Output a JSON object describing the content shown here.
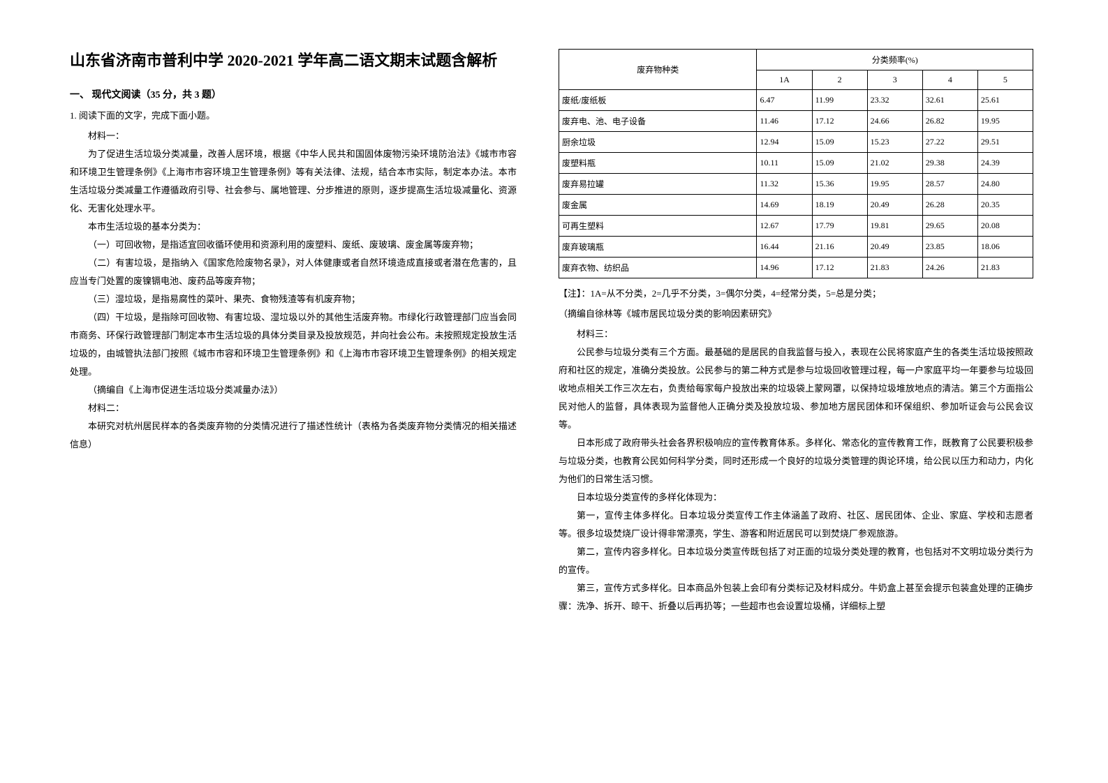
{
  "title": "山东省济南市普利中学 2020-2021 学年高二语文期末试题含解析",
  "section1": {
    "heading": "一、 现代文阅读（35 分，共 3 题）",
    "q1_intro": "1. 阅读下面的文字，完成下面小题。",
    "mat1_label": "材料一：",
    "mat1_p1": "为了促进生活垃圾分类减量，改善人居环境，根据《中华人民共和国固体废物污染环境防治法》《城市市容和环境卫生管理条例》《上海市市容环境卫生管理条例》等有关法律、法规，结合本市实际，制定本办法。本市生活垃圾分类减量工作遵循政府引导、社会参与、属地管理、分步推进的原则，逐步提高生活垃圾减量化、资源化、无害化处理水平。",
    "mat1_p2": "本市生活垃圾的基本分类为：",
    "mat1_p3": "（一）可回收物，是指适宜回收循环使用和资源利用的废塑料、废纸、废玻璃、废金属等废弃物；",
    "mat1_p4": "（二）有害垃圾，是指纳入《国家危险废物名录》，对人体健康或者自然环境造成直接或者潜在危害的，且应当专门处置的废镍镉电池、废药品等废弃物；",
    "mat1_p5": "（三）湿垃圾，是指易腐性的菜叶、果壳、食物残渣等有机废弃物；",
    "mat1_p6": "（四）干垃圾，是指除可回收物、有害垃圾、湿垃圾以外的其他生活废弃物。市绿化行政管理部门应当会同市商务、环保行政管理部门制定本市生活垃圾的具体分类目录及投放规范，并向社会公布。未按照规定投放生活垃圾的，由城管执法部门按照《城市市容和环境卫生管理条例》和《上海市市容环境卫生管理条例》的相关规定处理。",
    "mat1_src": "（摘编自《上海市促进生活垃圾分类减量办法》）",
    "mat2_label": "材料二：",
    "mat2_p1": "本研究对杭州居民样本的各类废弃物的分类情况进行了描述性统计（表格为各类废弃物分类情况的相关描述信息）"
  },
  "table": {
    "col_category": "废弃物种类",
    "col_freq": "分类频率(%)",
    "headers": [
      "1A",
      "2",
      "3",
      "4",
      "5"
    ],
    "rows": [
      {
        "label": "废纸/废纸板",
        "v": [
          "6.47",
          "11.99",
          "23.32",
          "32.61",
          "25.61"
        ]
      },
      {
        "label": "废弃电、池、电子设备",
        "v": [
          "11.46",
          "17.12",
          "24.66",
          "26.82",
          "19.95"
        ]
      },
      {
        "label": "厨余垃圾",
        "v": [
          "12.94",
          "15.09",
          "15.23",
          "27.22",
          "29.51"
        ]
      },
      {
        "label": "废塑料瓶",
        "v": [
          "10.11",
          "15.09",
          "21.02",
          "29.38",
          "24.39"
        ]
      },
      {
        "label": "废弃易拉罐",
        "v": [
          "11.32",
          "15.36",
          "19.95",
          "28.57",
          "24.80"
        ]
      },
      {
        "label": "废金属",
        "v": [
          "14.69",
          "18.19",
          "20.49",
          "26.28",
          "20.35"
        ]
      },
      {
        "label": "可再生塑料",
        "v": [
          "12.67",
          "17.79",
          "19.81",
          "29.65",
          "20.08"
        ]
      },
      {
        "label": "废弃玻璃瓶",
        "v": [
          "16.44",
          "21.16",
          "20.49",
          "23.85",
          "18.06"
        ]
      },
      {
        "label": "废弃衣物、纺织品",
        "v": [
          "14.96",
          "17.12",
          "21.83",
          "24.26",
          "21.83"
        ]
      }
    ]
  },
  "note1": "【注】：1A=从不分类，2=几乎不分类，3=偶尔分类，4=经常分类，5=总是分类；",
  "note2": "（摘编自徐林等《城市居民垃圾分类的影响因素研究》",
  "mat3_label": "材料三：",
  "mat3_p1": "公民参与垃圾分类有三个方面。最基础的是居民的自我监督与投入，表现在公民将家庭产生的各类生活垃圾按照政府和社区的规定，准确分类投放。公民参与的第二种方式是参与垃圾回收管理过程，每一户家庭平均一年要参与垃圾回收地点相关工作三次左右，负责给每家每户投放出来的垃圾袋上蒙网罩，以保持垃圾堆放地点的清洁。第三个方面指公民对他人的监督，具体表现为监督他人正确分类及投放垃圾、参加地方居民团体和环保组织、参加听证会与公民会议等。",
  "mat3_p2": "日本形成了政府带头社会各界积极响应的宣传教育体系。多样化、常态化的宣传教育工作，既教育了公民要积极参与垃圾分类，也教育公民如何科学分类，同时还形成一个良好的垃圾分类管理的舆论环境，给公民以压力和动力，内化为他们的日常生活习惯。",
  "mat3_p3": "日本垃圾分类宣传的多样化体现为：",
  "mat3_p4": "第一，宣传主体多样化。日本垃圾分类宣传工作主体涵盖了政府、社区、居民团体、企业、家庭、学校和志愿者等。很多垃圾焚烧厂设计得非常漂亮，学生、游客和附近居民可以到焚烧厂参观旅游。",
  "mat3_p5": "第二，宣传内容多样化。日本垃圾分类宣传既包括了对正面的垃圾分类处理的教育，也包括对不文明垃圾分类行为的宣传。",
  "mat3_p6": "第三，宣传方式多样化。日本商品外包装上会印有分类标记及材料成分。牛奶盒上甚至会提示包装盒处理的正确步骤：洗净、拆开、晾干、折叠以后再扔等；一些超市也会设置垃圾桶，详细标上塑"
}
